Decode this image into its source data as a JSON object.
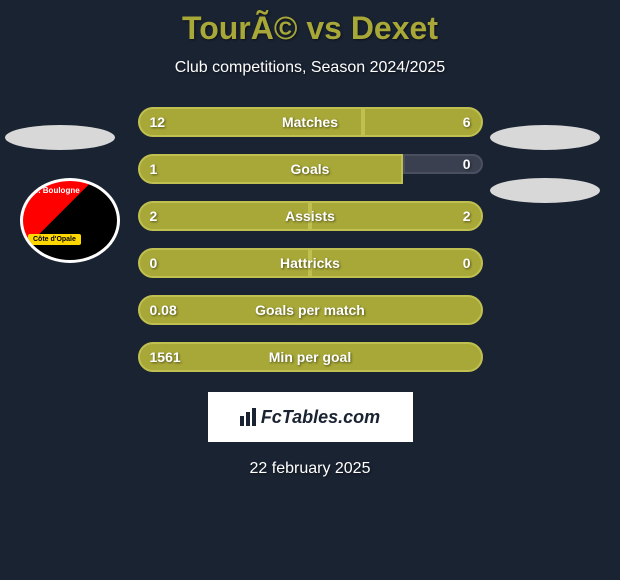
{
  "header": {
    "title": "TourÃ© vs Dexet",
    "subtitle": "Club competitions, Season 2024/2025"
  },
  "club_badge": {
    "top_text": "S. Boulogne",
    "banner_text": "Côte d'Opale"
  },
  "stats": [
    {
      "label": "Matches",
      "left_value": "12",
      "right_value": "6",
      "left_width": 225,
      "right_width": 120,
      "right_has_gap": true
    },
    {
      "label": "Goals",
      "left_value": "1",
      "right_value": "0",
      "left_width": 265,
      "right_width": 80,
      "right_zero": true
    },
    {
      "label": "Assists",
      "left_value": "2",
      "right_value": "2",
      "left_width": 172,
      "right_width": 173
    },
    {
      "label": "Hattricks",
      "left_value": "0",
      "right_value": "0",
      "left_width": 172,
      "right_width": 173,
      "both_zero": true
    },
    {
      "label": "Goals per match",
      "left_value": "0.08",
      "right_value": "",
      "left_width": 345,
      "right_width": 0,
      "full_bar": true
    },
    {
      "label": "Min per goal",
      "left_value": "1561",
      "right_value": "",
      "left_width": 345,
      "right_width": 0,
      "full_bar": true
    }
  ],
  "colors": {
    "background": "#1a2332",
    "bar_fill": "#a8a838",
    "bar_border": "#c0c050",
    "title_color": "#a8a838",
    "text_color": "#ffffff"
  },
  "fctables": {
    "text": "FcTables.com"
  },
  "footer": {
    "date": "22 february 2025"
  }
}
